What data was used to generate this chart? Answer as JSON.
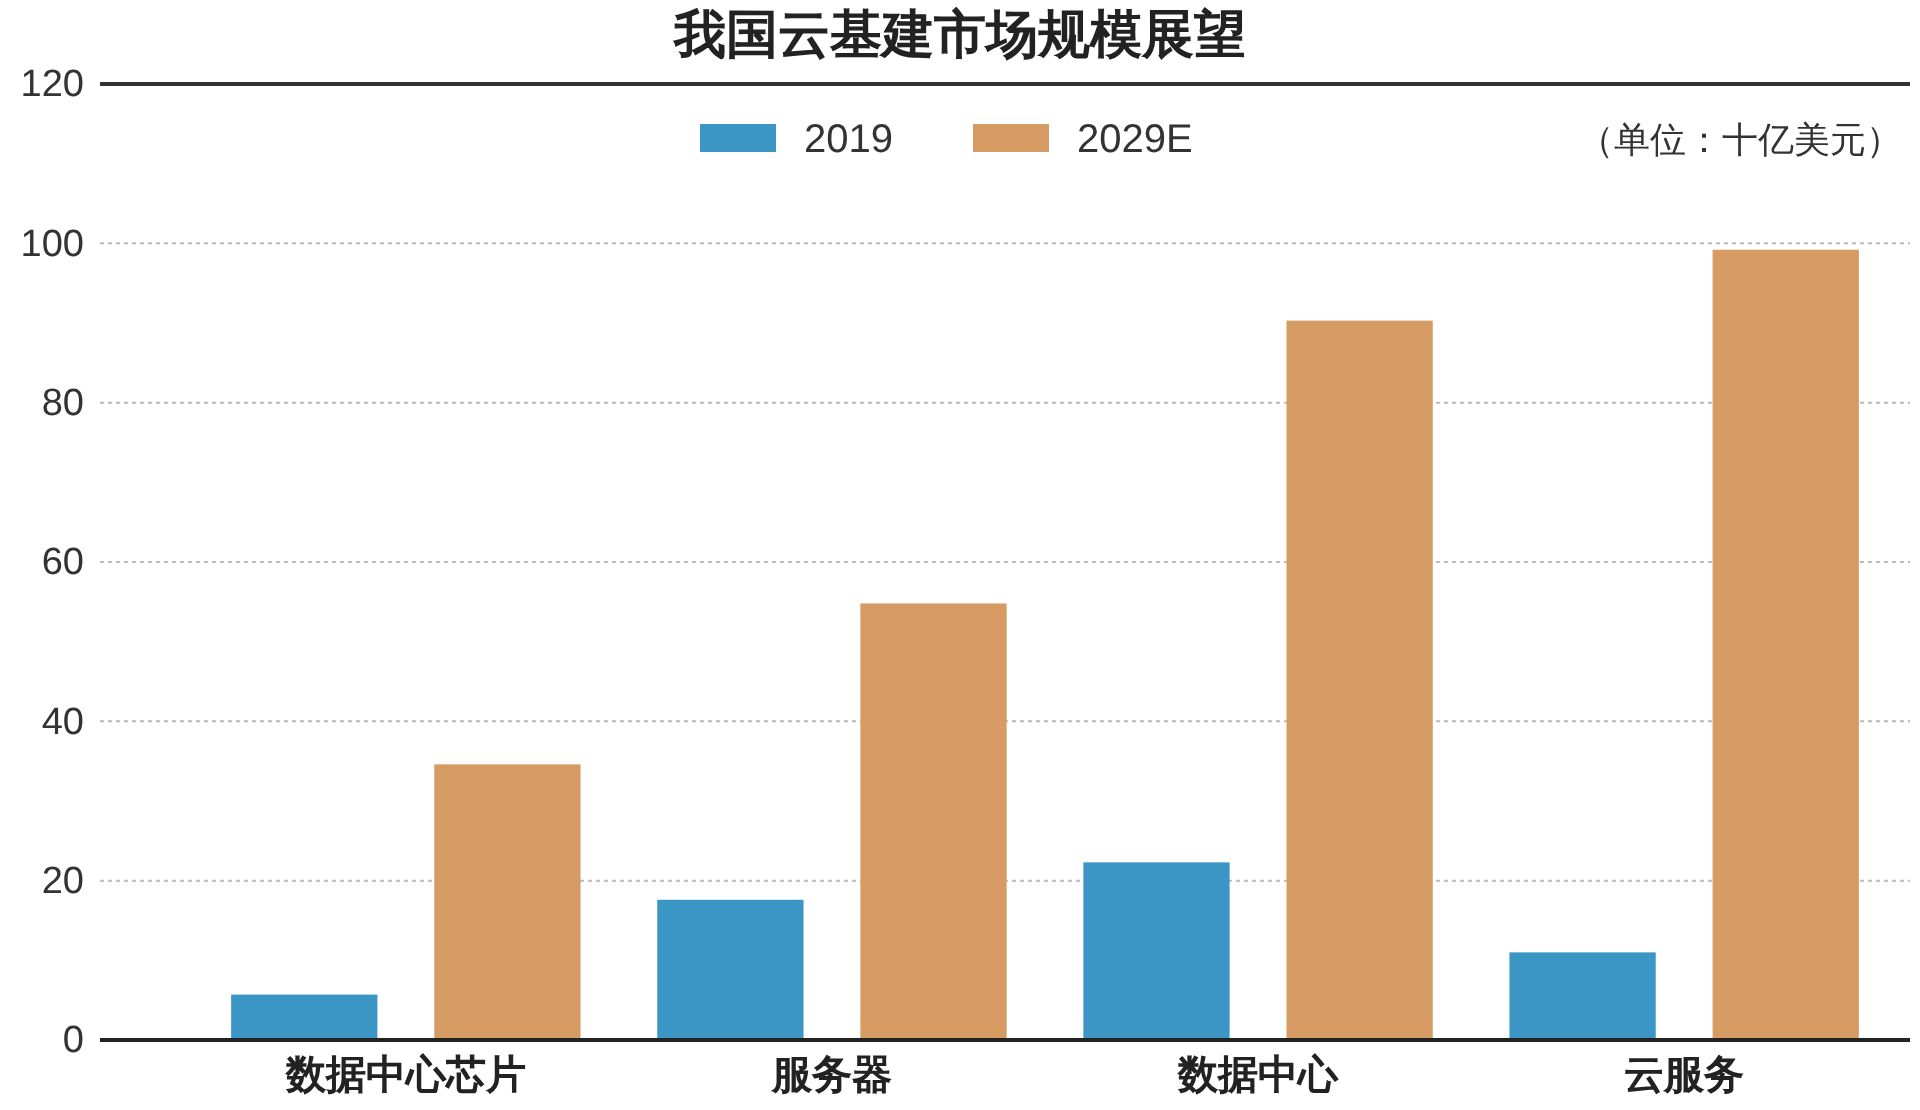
{
  "chart_data": {
    "type": "bar",
    "title": "我国云基建市场规模展望",
    "categories": [
      "数据中心芯片",
      "服务器",
      "数据中心",
      "云服务"
    ],
    "series": [
      {
        "name": "2019",
        "color": "#3b96c5",
        "values": [
          5.7,
          17.6,
          22.3,
          11
        ]
      },
      {
        "name": "2029E",
        "color": "#d69a63",
        "values": [
          34.6,
          54.8,
          90.3,
          99.2
        ]
      }
    ],
    "ylim": [
      0,
      120
    ],
    "yticks": [
      0,
      20,
      40,
      60,
      80,
      100,
      120
    ],
    "grid": "y",
    "legend": "top",
    "annotations": [
      "（单位：十亿美元）"
    ]
  }
}
